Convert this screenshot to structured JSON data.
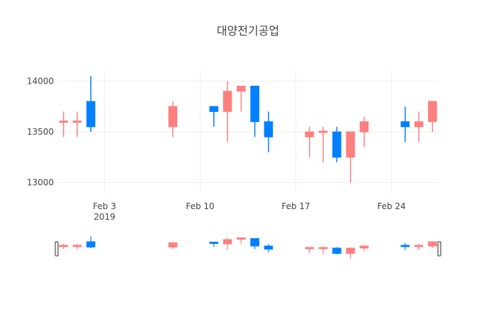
{
  "chart_data": {
    "type": "candlestick",
    "title": "대양전기공업",
    "xlabel": "",
    "ylabel": "",
    "ylim": [
      12900,
      14100
    ],
    "yticks": [
      13000,
      13500,
      14000
    ],
    "xticks": [
      {
        "date": "2019-02-03",
        "label": "Feb 3",
        "sublabel": "2019"
      },
      {
        "date": "2019-02-10",
        "label": "Feb 10",
        "sublabel": ""
      },
      {
        "date": "2019-02-17",
        "label": "Feb 17",
        "sublabel": ""
      },
      {
        "date": "2019-02-24",
        "label": "Feb 24",
        "sublabel": ""
      }
    ],
    "xrange": [
      "2019-01-30T12:00",
      "2019-02-27T12:00"
    ],
    "grid": true,
    "legend": "none",
    "rangeslider": true,
    "colors": {
      "increasing": "#0080FF",
      "decreasing": "#FF7F7F"
    },
    "candles": [
      {
        "date": "2019-01-31",
        "open": 13600,
        "high": 13700,
        "low": 13450,
        "close": 13600,
        "direction": "decreasing"
      },
      {
        "date": "2019-02-01",
        "open": 13600,
        "high": 13700,
        "low": 13450,
        "close": 13600,
        "direction": "decreasing"
      },
      {
        "date": "2019-02-02",
        "open": 13550,
        "high": 14050,
        "low": 13500,
        "close": 13800,
        "direction": "increasing"
      },
      {
        "date": "2019-02-08",
        "open": 13750,
        "high": 13800,
        "low": 13450,
        "close": 13550,
        "direction": "decreasing"
      },
      {
        "date": "2019-02-11",
        "open": 13700,
        "high": 13750,
        "low": 13550,
        "close": 13750,
        "direction": "increasing"
      },
      {
        "date": "2019-02-12",
        "open": 13900,
        "high": 14000,
        "low": 13400,
        "close": 13700,
        "direction": "decreasing"
      },
      {
        "date": "2019-02-13",
        "open": 13950,
        "high": 13950,
        "low": 13700,
        "close": 13900,
        "direction": "decreasing"
      },
      {
        "date": "2019-02-14",
        "open": 13600,
        "high": 13950,
        "low": 13450,
        "close": 13950,
        "direction": "increasing"
      },
      {
        "date": "2019-02-15",
        "open": 13450,
        "high": 13700,
        "low": 13300,
        "close": 13600,
        "direction": "increasing"
      },
      {
        "date": "2019-02-18",
        "open": 13500,
        "high": 13550,
        "low": 13250,
        "close": 13450,
        "direction": "decreasing"
      },
      {
        "date": "2019-02-19",
        "open": 13500,
        "high": 13550,
        "low": 13200,
        "close": 13500,
        "direction": "decreasing"
      },
      {
        "date": "2019-02-20",
        "open": 13250,
        "high": 13550,
        "low": 13200,
        "close": 13500,
        "direction": "increasing"
      },
      {
        "date": "2019-02-21",
        "open": 13500,
        "high": 13500,
        "low": 13000,
        "close": 13250,
        "direction": "decreasing"
      },
      {
        "date": "2019-02-22",
        "open": 13600,
        "high": 13650,
        "low": 13350,
        "close": 13500,
        "direction": "decreasing"
      },
      {
        "date": "2019-02-25",
        "open": 13550,
        "high": 13750,
        "low": 13400,
        "close": 13600,
        "direction": "increasing"
      },
      {
        "date": "2019-02-26",
        "open": 13600,
        "high": 13700,
        "low": 13400,
        "close": 13550,
        "direction": "decreasing"
      },
      {
        "date": "2019-02-27",
        "open": 13800,
        "high": 13800,
        "low": 13500,
        "close": 13600,
        "direction": "decreasing"
      }
    ]
  }
}
